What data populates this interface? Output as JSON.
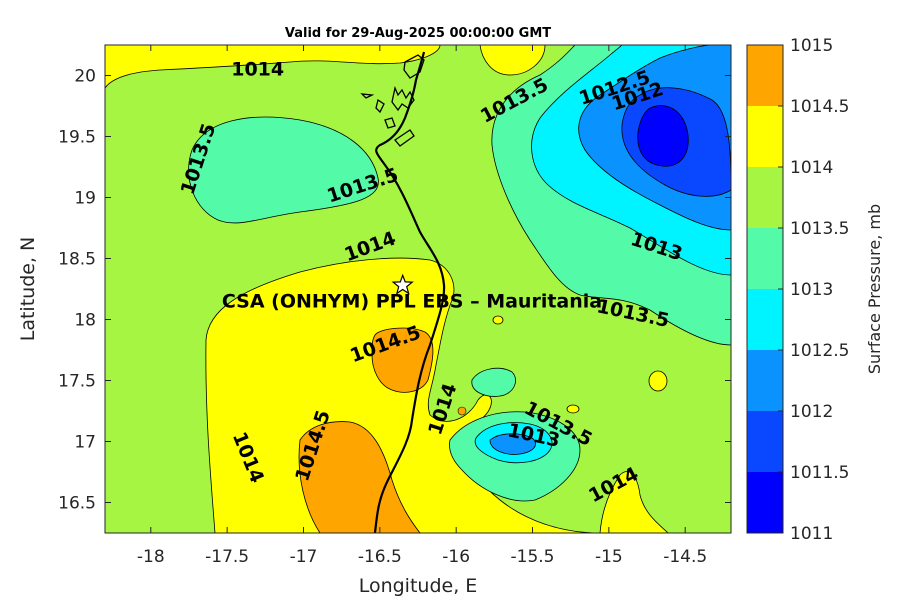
{
  "title": "Valid for 29-Aug-2025 00:00:00 GMT",
  "xlabel": "Longitude, E",
  "ylabel": "Latitude, N",
  "colorbar_label": "Surface Pressure, mb",
  "station_label": "CSA (ONHYM) PPL EBS  – Mauritania",
  "station_marker": "white-star-icon",
  "x_ticks": [
    "-18",
    "-17.5",
    "-17",
    "-16.5",
    "-16",
    "-15.5",
    "-15",
    "-14.5"
  ],
  "y_ticks": [
    "20",
    "19.5",
    "19",
    "18.5",
    "18",
    "17.5",
    "17",
    "16.5"
  ],
  "colorbar_ticks": [
    "1015",
    "1014.5",
    "1014",
    "1013.5",
    "1013",
    "1012.5",
    "1012",
    "1011.5",
    "1011"
  ],
  "contour_labels": [
    "1014",
    "1013.5",
    "1013.5",
    "1013.5",
    "1012.5",
    "1012",
    "1013",
    "1013.5",
    "1014",
    "1014.5",
    "1014.5",
    "1014",
    "1014",
    "1013.5",
    "1013",
    "1014"
  ],
  "chart_data": {
    "type": "heatmap",
    "xlim": [
      -18.3,
      -14.2
    ],
    "ylim": [
      16.25,
      20.25
    ],
    "x_ticks": [
      -18,
      -17.5,
      -17,
      -16.5,
      -16,
      -15.5,
      -15,
      -14.5
    ],
    "y_ticks": [
      16.5,
      17,
      17.5,
      18,
      18.5,
      19,
      19.5,
      20
    ],
    "colorbar": {
      "levels": [
        1011,
        1011.5,
        1012,
        1012.5,
        1013,
        1013.5,
        1014,
        1014.5,
        1015
      ],
      "colors": [
        "#0000ff",
        "#0a48ff",
        "#0a92ff",
        "#00f4ff",
        "#53fba9",
        "#a6f542",
        "#ffff00",
        "#ffa500",
        "#ff5500"
      ]
    },
    "station": {
      "lon": -16.35,
      "lat": 18.28
    },
    "contour_labels": [
      {
        "text": "1014",
        "lon": -17.3,
        "lat": 20.0
      },
      {
        "text": "1013.5",
        "lon": -17.65,
        "lat": 19.3
      },
      {
        "text": "1013.5",
        "lon": -16.6,
        "lat": 19.05
      },
      {
        "text": "1013.5",
        "lon": -15.6,
        "lat": 19.75
      },
      {
        "text": "1012.5",
        "lon": -14.95,
        "lat": 19.85
      },
      {
        "text": "1012",
        "lon": -14.8,
        "lat": 19.78
      },
      {
        "text": "1013",
        "lon": -14.7,
        "lat": 18.55
      },
      {
        "text": "1013.5",
        "lon": -14.85,
        "lat": 18.0
      },
      {
        "text": "1014",
        "lon": -16.55,
        "lat": 18.55
      },
      {
        "text": "1014.5",
        "lon": -16.45,
        "lat": 17.75
      },
      {
        "text": "1014.5",
        "lon": -16.9,
        "lat": 16.95
      },
      {
        "text": "1014",
        "lon": -17.4,
        "lat": 16.85
      },
      {
        "text": "1014",
        "lon": -16.05,
        "lat": 17.25
      },
      {
        "text": "1013.5",
        "lon": -15.35,
        "lat": 17.1
      },
      {
        "text": "1013",
        "lon": -15.5,
        "lat": 17.0
      },
      {
        "text": "1014",
        "lon": -14.95,
        "lat": 16.6
      }
    ]
  }
}
